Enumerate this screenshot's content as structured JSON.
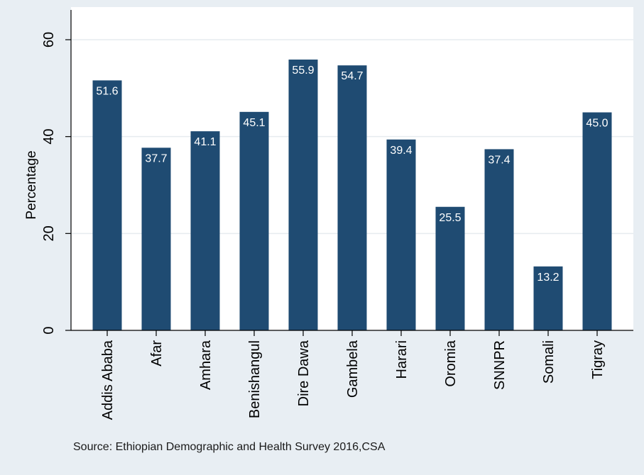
{
  "chart_data": {
    "type": "bar",
    "title": "",
    "xlabel": "",
    "ylabel": "Percentage",
    "categories": [
      "Addis Ababa",
      "Afar",
      "Amhara",
      "Benishangul",
      "Dire Dawa",
      "Gambela",
      "Harari",
      "Oromia",
      "SNNPR",
      "Somali",
      "Tigray"
    ],
    "values": [
      51.6,
      37.7,
      41.1,
      45.1,
      55.9,
      54.7,
      39.4,
      25.5,
      37.4,
      13.2,
      45.0
    ],
    "value_labels": [
      "51.6",
      "37.7",
      "41.1",
      "45.1",
      "55.9",
      "54.7",
      "39.4",
      "25.5",
      "37.4",
      "13.2",
      "45.0"
    ],
    "ylim": [
      0,
      60
    ],
    "yticks": [
      0,
      20,
      40,
      60
    ],
    "grid": true,
    "legend": "none",
    "colors": {
      "bar": "#1f4b72",
      "bar_label": "#ffffff",
      "plot_background": "#ffffff",
      "outer_background": "#e8eef3",
      "grid": "#e6ebef",
      "axis": "#000000"
    }
  },
  "note": "Source:  Ethiopian Demographic and Health Survey 2016,CSA"
}
